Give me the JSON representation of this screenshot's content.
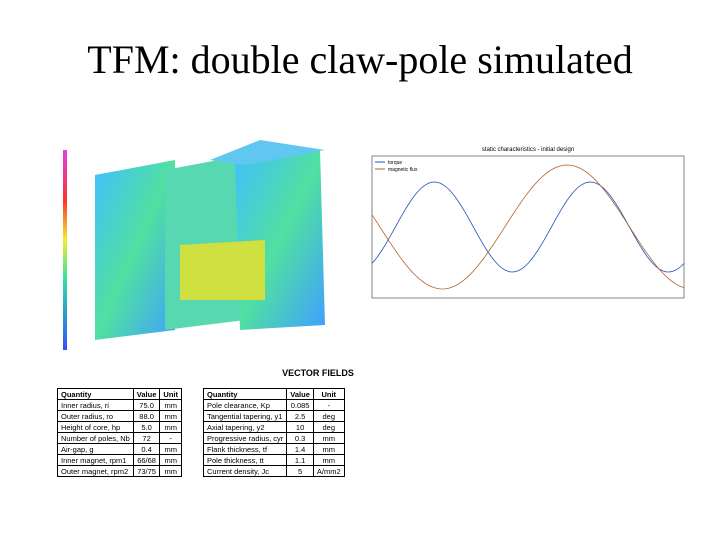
{
  "title": "TFM: double claw-pole simulated",
  "simulation": {
    "caption": "VECTOR FIELDS"
  },
  "chart": {
    "title": "static characteristics - initial design",
    "legend": [
      "torque",
      "magnetic flux"
    ]
  },
  "tables": [
    {
      "header": [
        "Quantity",
        "Value",
        "Unit"
      ],
      "rows": [
        [
          "Inner radius, ri",
          "75.0",
          "mm"
        ],
        [
          "Outer radius, ro",
          "88.0",
          "mm"
        ],
        [
          "Height of core, hp",
          "5.0",
          "mm"
        ],
        [
          "Number of poles, Nb",
          "72",
          "-"
        ],
        [
          "Air-gap, g",
          "0.4",
          "mm"
        ],
        [
          "Inner magnet, rpm1",
          "66/68",
          "mm"
        ],
        [
          "Outer magnet, rpm2",
          "73/75",
          "mm"
        ]
      ]
    },
    {
      "header": [
        "Quantity",
        "Value",
        "Unit"
      ],
      "rows": [
        [
          "Pole clearance, Kp",
          "0.085",
          "-"
        ],
        [
          "Tangential tapering, y1",
          "2.5",
          "deg"
        ],
        [
          "Axial tapering, y2",
          "10",
          "deg"
        ],
        [
          "Progressive radius, cyr",
          "0.3",
          "mm"
        ],
        [
          "Flank thickness, tf",
          "1.4",
          "mm"
        ],
        [
          "Pole thickness, tt",
          "1.1",
          "mm"
        ],
        [
          "Current density, Jc",
          "5",
          "A/mm2"
        ]
      ]
    }
  ]
}
